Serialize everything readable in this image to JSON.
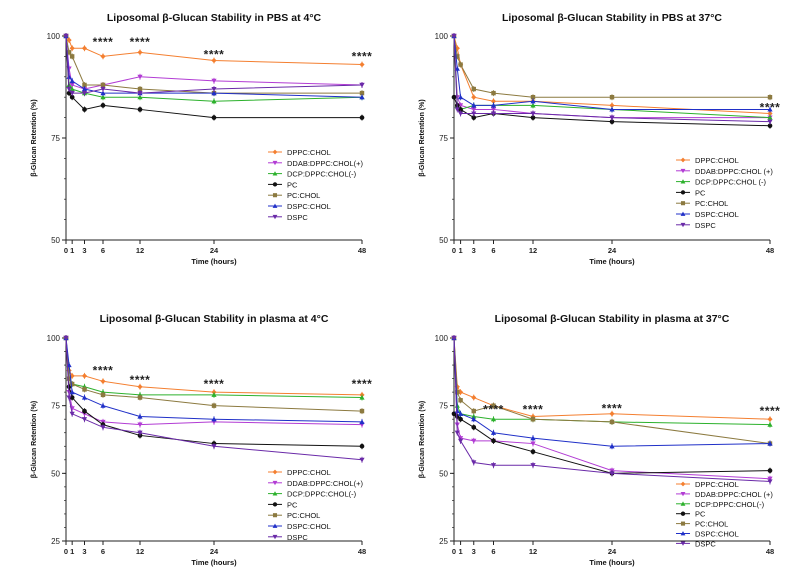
{
  "series_style": [
    {
      "name": "DPPC:CHOL",
      "color": "#F47F30",
      "marker": "diamond"
    },
    {
      "name": "DDAB:DPPC:CHOL(+)",
      "color": "#B23CD4",
      "marker": "triangle-down"
    },
    {
      "name": "DCP:DPPC:CHOL(-)",
      "color": "#2CB12C",
      "marker": "triangle-up"
    },
    {
      "name": "PC",
      "color": "#111111",
      "marker": "circle"
    },
    {
      "name": "PC:CHOL",
      "color": "#8C7A40",
      "marker": "square"
    },
    {
      "name": "DSPC:CHOL",
      "color": "#2030C8",
      "marker": "triangle-up"
    },
    {
      "name": "DSPC",
      "color": "#6A2AA8",
      "marker": "triangle-down"
    }
  ],
  "chart_data": [
    {
      "type": "line",
      "title": "Liposomal  β-Glucan Stability in PBS at 4°C",
      "xlabel": "Time (hours)",
      "ylabel": "β-Glucan Retention (%)",
      "x": [
        0,
        0.5,
        1,
        3,
        6,
        12,
        24,
        48
      ],
      "x_ticks": [
        0,
        1,
        3,
        6,
        12,
        24,
        48
      ],
      "y_ticks": [
        50,
        75,
        100
      ],
      "ylim": [
        50,
        100
      ],
      "xlim": [
        0,
        48
      ],
      "legend_names": [
        "DPPC:CHOL",
        "DDAB:DPPC:CHOL(+)",
        "DCP:DPPC:CHOL(-)",
        "PC",
        "PC:CHOL",
        "DSPC:CHOL",
        "DSPC"
      ],
      "series": [
        {
          "name": "DPPC:CHOL",
          "values": [
            100,
            99,
            97,
            97,
            95,
            96,
            94,
            93
          ]
        },
        {
          "name": "DDAB:DPPC:CHOL(+)",
          "values": [
            100,
            92,
            88,
            87,
            88,
            90,
            89,
            88
          ]
        },
        {
          "name": "DCP:DPPC:CHOL(-)",
          "values": [
            100,
            88,
            87,
            86,
            85,
            85,
            84,
            85
          ]
        },
        {
          "name": "PC",
          "values": [
            100,
            86,
            85,
            82,
            83,
            82,
            80,
            80
          ]
        },
        {
          "name": "PC:CHOL",
          "values": [
            100,
            96,
            95,
            88,
            88,
            87,
            86,
            86
          ]
        },
        {
          "name": "DSPC:CHOL",
          "values": [
            100,
            90,
            89,
            87,
            86,
            86,
            86,
            85
          ]
        },
        {
          "name": "DSPC",
          "values": [
            100,
            87,
            86,
            86,
            87,
            86,
            87,
            88
          ]
        }
      ],
      "annotations": [
        {
          "x": 6,
          "y": 98.5,
          "text": "****"
        },
        {
          "x": 12,
          "y": 98.5,
          "text": "****"
        },
        {
          "x": 24,
          "y": 95.5,
          "text": "****"
        },
        {
          "x": 48,
          "y": 95,
          "text": "****"
        }
      ]
    },
    {
      "type": "line",
      "title": "Liposomal  β-Glucan Stability in PBS at 37°C",
      "xlabel": "Time (hours)",
      "ylabel": "β-Glucan Retention (%)",
      "x": [
        0,
        0.5,
        1,
        3,
        6,
        12,
        24,
        48
      ],
      "x_ticks": [
        0,
        1,
        3,
        6,
        12,
        24,
        48
      ],
      "y_ticks": [
        50,
        75,
        100
      ],
      "ylim": [
        50,
        100
      ],
      "xlim": [
        0,
        48
      ],
      "legend_names": [
        "DPPC:CHOL",
        "DDAB:DPPC:CHOL (+)",
        "DCP:DPPC:CHOL (-)",
        "PC",
        "PC:CHOL",
        "DSPC:CHOL",
        "DSPC"
      ],
      "series": [
        {
          "name": "DPPC:CHOL",
          "values": [
            100,
            97,
            93,
            85,
            84,
            84,
            83,
            81
          ]
        },
        {
          "name": "DDAB:DPPC:CHOL(+)",
          "values": [
            100,
            85,
            83,
            82,
            82,
            81,
            80,
            80
          ]
        },
        {
          "name": "DCP:DPPC:CHOL(-)",
          "values": [
            100,
            83,
            82,
            83,
            83,
            83,
            82,
            80
          ]
        },
        {
          "name": "PC",
          "values": [
            85,
            83,
            82,
            80,
            81,
            80,
            79,
            78
          ]
        },
        {
          "name": "PC:CHOL",
          "values": [
            100,
            95,
            93,
            87,
            86,
            85,
            85,
            85
          ]
        },
        {
          "name": "DSPC:CHOL",
          "values": [
            100,
            92,
            85,
            83,
            83,
            84,
            82,
            82
          ]
        },
        {
          "name": "DSPC",
          "values": [
            100,
            82,
            81,
            81,
            81,
            81,
            80,
            79
          ]
        }
      ],
      "annotations": [
        {
          "x": 48,
          "y": 82.5,
          "text": "****"
        }
      ]
    },
    {
      "type": "line",
      "title": "Liposomal  β-Glucan Stability in plasma at 4°C",
      "xlabel": "Time (hours)",
      "ylabel": "β-Glucan Retention (%)",
      "x": [
        0,
        0.5,
        1,
        3,
        6,
        12,
        24,
        48
      ],
      "x_ticks": [
        0,
        1,
        3,
        6,
        12,
        24,
        48
      ],
      "y_ticks": [
        25,
        50,
        75,
        100
      ],
      "ylim": [
        25,
        100
      ],
      "xlim": [
        0,
        48
      ],
      "legend_names": [
        "DPPC:CHOL",
        "DDAB:DPPC:CHOL(+)",
        "DCP:DPPC:CHOL(-)",
        "PC",
        "PC:CHOL",
        "DSPC:CHOL",
        "DSPC"
      ],
      "series": [
        {
          "name": "DPPC:CHOL",
          "values": [
            100,
            88,
            86,
            86,
            84,
            82,
            80,
            79
          ]
        },
        {
          "name": "DDAB:DPPC:CHOL(+)",
          "values": [
            100,
            80,
            74,
            72,
            69,
            68,
            69,
            68
          ]
        },
        {
          "name": "DCP:DPPC:CHOL(-)",
          "values": [
            100,
            85,
            83,
            82,
            80,
            79,
            79,
            78
          ]
        },
        {
          "name": "PC",
          "values": [
            100,
            82,
            78,
            73,
            68,
            64,
            61,
            60
          ]
        },
        {
          "name": "PC:CHOL",
          "values": [
            100,
            85,
            83,
            81,
            79,
            78,
            75,
            73
          ]
        },
        {
          "name": "DSPC:CHOL",
          "values": [
            100,
            90,
            80,
            78,
            75,
            71,
            70,
            69
          ]
        },
        {
          "name": "DSPC",
          "values": [
            100,
            78,
            72,
            70,
            67,
            65,
            60,
            55
          ]
        }
      ],
      "annotations": [
        {
          "x": 6,
          "y": 88,
          "text": "****"
        },
        {
          "x": 12,
          "y": 84.5,
          "text": "****"
        },
        {
          "x": 24,
          "y": 83,
          "text": "****"
        },
        {
          "x": 48,
          "y": 83,
          "text": "****"
        }
      ]
    },
    {
      "type": "line",
      "title": "Liposomal  β-Glucan Stability in plasma at 37°C",
      "xlabel": "Time (hours)",
      "ylabel": "β-Glucan Retention (%)",
      "x": [
        0,
        0.5,
        1,
        3,
        6,
        12,
        24,
        48
      ],
      "x_ticks": [
        0,
        1,
        3,
        6,
        12,
        24,
        48
      ],
      "y_ticks": [
        25,
        50,
        75,
        100
      ],
      "ylim": [
        25,
        100
      ],
      "xlim": [
        0,
        48
      ],
      "legend_names": [
        "DPPC:CHOL",
        "DDAB:DPPC:CHOL (+)",
        "DCP:DPPC:CHOL(-)",
        "PC",
        "PC:CHOL",
        "DSPC:CHOL",
        "DSPC"
      ],
      "series": [
        {
          "name": "DPPC:CHOL",
          "values": [
            100,
            82,
            80,
            78,
            75,
            71,
            72,
            70
          ]
        },
        {
          "name": "DDAB:DPPC:CHOL(+)",
          "values": [
            100,
            68,
            63,
            62,
            62,
            61,
            51,
            48
          ]
        },
        {
          "name": "DCP:DPPC:CHOL(-)",
          "values": [
            100,
            75,
            72,
            71,
            70,
            70,
            69,
            68
          ]
        },
        {
          "name": "PC",
          "values": [
            72,
            71,
            70,
            67,
            62,
            58,
            50,
            51
          ]
        },
        {
          "name": "PC:CHOL",
          "values": [
            100,
            80,
            77,
            73,
            75,
            70,
            69,
            61
          ]
        },
        {
          "name": "DSPC:CHOL",
          "values": [
            100,
            73,
            72,
            70,
            65,
            63,
            60,
            61
          ]
        },
        {
          "name": "DSPC",
          "values": [
            100,
            65,
            62,
            54,
            53,
            53,
            50,
            47
          ]
        }
      ],
      "annotations": [
        {
          "x": 6,
          "y": 73.5,
          "text": "****"
        },
        {
          "x": 12,
          "y": 73.5,
          "text": "****"
        },
        {
          "x": 24,
          "y": 74,
          "text": "****"
        },
        {
          "x": 48,
          "y": 73,
          "text": "****"
        }
      ]
    }
  ]
}
